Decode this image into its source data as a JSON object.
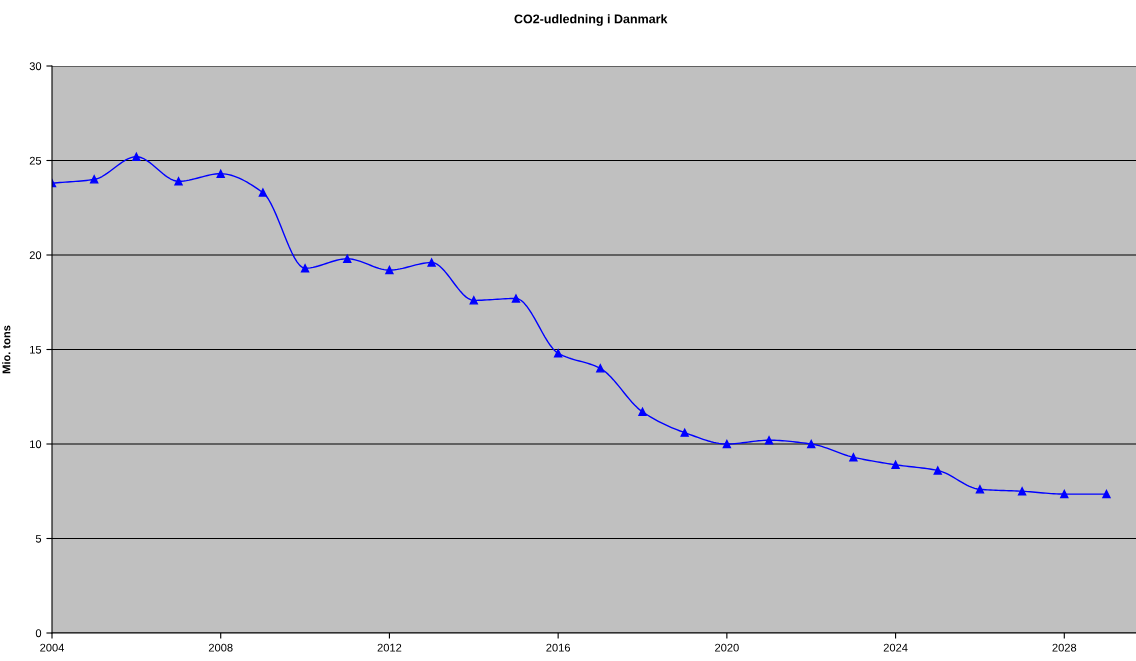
{
  "chart_data": {
    "type": "line",
    "title": "CO2-udledning i Danmark",
    "ylabel": "Mio. tons",
    "x": [
      2004,
      2005,
      2006,
      2007,
      2008,
      2009,
      2010,
      2011,
      2012,
      2013,
      2014,
      2015,
      2016,
      2017,
      2018,
      2019,
      2020,
      2021,
      2022,
      2023,
      2024,
      2025,
      2026,
      2027,
      2028,
      2029
    ],
    "series": [
      {
        "color": "#0000ff",
        "values": [
          23.8,
          24.0,
          25.2,
          23.9,
          24.3,
          23.3,
          19.3,
          19.8,
          19.2,
          19.6,
          17.6,
          17.7,
          14.8,
          14.0,
          11.7,
          10.6,
          10.0,
          10.2,
          10.0,
          9.3,
          8.9,
          8.6,
          7.6,
          7.5,
          7.35,
          7.35
        ]
      }
    ],
    "xlim": [
      2004,
      2029.7
    ],
    "xticks": [
      2004,
      2008,
      2012,
      2016,
      2020,
      2024,
      2028
    ],
    "ylim": [
      0,
      30
    ],
    "yticks": [
      0,
      5,
      10,
      15,
      20,
      25,
      30
    ],
    "grid": "y",
    "marker": "triangle",
    "line_style": "solid"
  }
}
